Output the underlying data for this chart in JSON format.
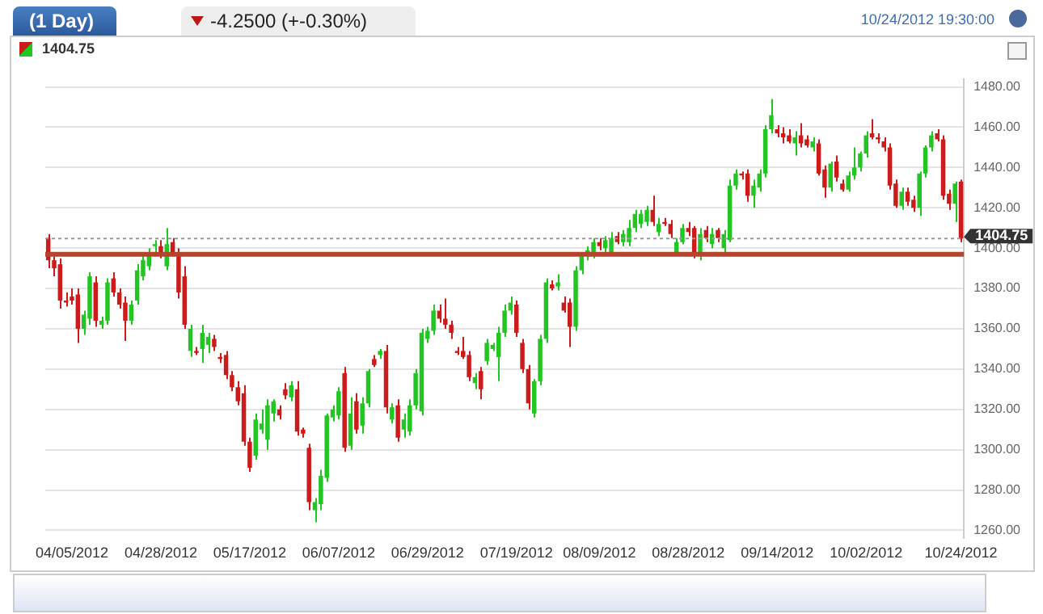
{
  "chart_data": {
    "type": "candlestick",
    "title": "(1 Day)",
    "subtitle": "-4.2500 (+-0.30%)",
    "annotations": [
      "1404.75",
      "10/24/2012 19:30:00"
    ],
    "categories": [
      null,
      null,
      null,
      null,
      "04/05/2012",
      null,
      null,
      null,
      null,
      null,
      null,
      null,
      null,
      null,
      null,
      null,
      null,
      null,
      null,
      "04/28/2012",
      null,
      null,
      null,
      null,
      null,
      null,
      null,
      null,
      null,
      null,
      null,
      null,
      null,
      null,
      "05/17/2012",
      null,
      null,
      null,
      null,
      null,
      null,
      null,
      null,
      null,
      null,
      null,
      null,
      null,
      null,
      "06/07/2012",
      null,
      null,
      null,
      null,
      null,
      null,
      null,
      null,
      null,
      null,
      null,
      null,
      null,
      null,
      "06/29/2012",
      null,
      null,
      null,
      null,
      null,
      null,
      null,
      null,
      null,
      null,
      null,
      null,
      null,
      null,
      "07/19/2012",
      null,
      null,
      null,
      null,
      null,
      null,
      null,
      null,
      null,
      null,
      null,
      null,
      null,
      "08/09/2012",
      null,
      null,
      null,
      null,
      null,
      null,
      null,
      null,
      null,
      null,
      null,
      null,
      null,
      null,
      "08/28/2012",
      null,
      null,
      null,
      null,
      null,
      null,
      null,
      null,
      null,
      null,
      null,
      null,
      null,
      null,
      "09/14/2012",
      null,
      null,
      null,
      null,
      null,
      null,
      null,
      null,
      null,
      null,
      null,
      null,
      null,
      null,
      "10/02/2012",
      null,
      null,
      null,
      null,
      null,
      null,
      null,
      null,
      null,
      null,
      null,
      null,
      null,
      null,
      null,
      "10/24/2012"
    ],
    "ohlc": [
      [
        1405,
        1407,
        1390,
        1394
      ],
      [
        1394,
        1396,
        1386,
        1390
      ],
      [
        1392,
        1395,
        1370,
        1374
      ],
      [
        1374,
        1378,
        1371,
        1373
      ],
      [
        1376,
        1380,
        1372,
        1374
      ],
      [
        1377,
        1380,
        1353,
        1360
      ],
      [
        1360,
        1369,
        1357,
        1367
      ],
      [
        1365,
        1388,
        1362,
        1386
      ],
      [
        1383,
        1386,
        1361,
        1364
      ],
      [
        1362,
        1366,
        1360,
        1364
      ],
      [
        1364,
        1385,
        1362,
        1383
      ],
      [
        1385,
        1388,
        1376,
        1378
      ],
      [
        1378,
        1380,
        1370,
        1372
      ],
      [
        1373,
        1376,
        1354,
        1364
      ],
      [
        1364,
        1374,
        1362,
        1372
      ],
      [
        1374,
        1392,
        1372,
        1389
      ],
      [
        1386,
        1396,
        1384,
        1394
      ],
      [
        1391,
        1400,
        1389,
        1398
      ],
      [
        1401,
        1404,
        1398,
        1402
      ],
      [
        1401,
        1404,
        1395,
        1397
      ],
      [
        1391,
        1410,
        1389,
        1402
      ],
      [
        1403,
        1405,
        1396,
        1398
      ],
      [
        1398,
        1400,
        1375,
        1378
      ],
      [
        1386,
        1391,
        1360,
        1362
      ],
      [
        1349,
        1362,
        1346,
        1360
      ],
      [
        1349,
        1351,
        1347,
        1348
      ],
      [
        1350,
        1362,
        1343,
        1358
      ],
      [
        1352,
        1358,
        1348,
        1356
      ],
      [
        1355,
        1357,
        1349,
        1351
      ],
      [
        1346,
        1348,
        1343,
        1345
      ],
      [
        1347,
        1349,
        1335,
        1337
      ],
      [
        1337,
        1339,
        1329,
        1331
      ],
      [
        1331,
        1334,
        1322,
        1324
      ],
      [
        1328,
        1332,
        1302,
        1304
      ],
      [
        1304,
        1306,
        1289,
        1291
      ],
      [
        1297,
        1318,
        1295,
        1315
      ],
      [
        1310,
        1320,
        1308,
        1313
      ],
      [
        1305,
        1325,
        1300,
        1322
      ],
      [
        1318,
        1325,
        1314,
        1324
      ],
      [
        1320,
        1322,
        1315,
        1317
      ],
      [
        1330,
        1333,
        1325,
        1327
      ],
      [
        1326,
        1334,
        1324,
        1332
      ],
      [
        1330,
        1334,
        1307,
        1309
      ],
      [
        1310,
        1311,
        1306,
        1308
      ],
      [
        1301,
        1303,
        1270,
        1274
      ],
      [
        1270,
        1276,
        1264,
        1274
      ],
      [
        1273,
        1290,
        1270,
        1287
      ],
      [
        1286,
        1318,
        1284,
        1317
      ],
      [
        1316,
        1322,
        1314,
        1320
      ],
      [
        1317,
        1331,
        1315,
        1329
      ],
      [
        1338,
        1341,
        1299,
        1301
      ],
      [
        1302,
        1326,
        1300,
        1318
      ],
      [
        1324,
        1328,
        1308,
        1310
      ],
      [
        1312,
        1326,
        1308,
        1323
      ],
      [
        1323,
        1340,
        1321,
        1339
      ],
      [
        1345,
        1347,
        1341,
        1342
      ],
      [
        1347,
        1350,
        1345,
        1349
      ],
      [
        1349,
        1352,
        1318,
        1321
      ],
      [
        1315,
        1323,
        1313,
        1321
      ],
      [
        1322,
        1325,
        1304,
        1306
      ],
      [
        1310,
        1318,
        1306,
        1315
      ],
      [
        1309,
        1325,
        1307,
        1322
      ],
      [
        1322,
        1340,
        1320,
        1338
      ],
      [
        1319,
        1360,
        1317,
        1358
      ],
      [
        1355,
        1361,
        1353,
        1359
      ],
      [
        1359,
        1372,
        1357,
        1369
      ],
      [
        1369,
        1372,
        1363,
        1365
      ],
      [
        1365,
        1375,
        1360,
        1362
      ],
      [
        1362,
        1364,
        1355,
        1358
      ],
      [
        1349,
        1351,
        1347,
        1348
      ],
      [
        1349,
        1356,
        1345,
        1346
      ],
      [
        1347,
        1349,
        1334,
        1336
      ],
      [
        1333,
        1338,
        1330,
        1336
      ],
      [
        1339,
        1341,
        1325,
        1330
      ],
      [
        1344,
        1355,
        1342,
        1353
      ],
      [
        1350,
        1353,
        1349,
        1352
      ],
      [
        1346,
        1361,
        1334,
        1358
      ],
      [
        1358,
        1372,
        1356,
        1369
      ],
      [
        1369,
        1376,
        1367,
        1373
      ],
      [
        1372,
        1374,
        1356,
        1358
      ],
      [
        1353,
        1355,
        1338,
        1340
      ],
      [
        1340,
        1342,
        1320,
        1323
      ],
      [
        1318,
        1335,
        1316,
        1334
      ],
      [
        1334,
        1357,
        1332,
        1355
      ],
      [
        1355,
        1385,
        1353,
        1383
      ],
      [
        1382,
        1384,
        1379,
        1380
      ],
      [
        1381,
        1387,
        1379,
        1383
      ],
      [
        1373,
        1376,
        1368,
        1369
      ],
      [
        1373,
        1375,
        1351,
        1361
      ],
      [
        1361,
        1391,
        1359,
        1389
      ],
      [
        1389,
        1397,
        1387,
        1396
      ],
      [
        1396,
        1401,
        1394,
        1399
      ],
      [
        1397,
        1405,
        1395,
        1403
      ],
      [
        1403,
        1405,
        1399,
        1401
      ],
      [
        1400,
        1406,
        1398,
        1404
      ],
      [
        1398,
        1408,
        1396,
        1405
      ],
      [
        1406,
        1408,
        1402,
        1403
      ],
      [
        1403,
        1409,
        1401,
        1407
      ],
      [
        1403,
        1414,
        1401,
        1410
      ],
      [
        1410,
        1419,
        1408,
        1417
      ],
      [
        1412,
        1419,
        1410,
        1417
      ],
      [
        1413,
        1421,
        1411,
        1419
      ],
      [
        1419,
        1426,
        1411,
        1413
      ],
      [
        1408,
        1415,
        1406,
        1412
      ],
      [
        1413,
        1415,
        1411,
        1412
      ],
      [
        1412,
        1414,
        1405,
        1407
      ],
      [
        1397,
        1405,
        1396,
        1403
      ],
      [
        1403,
        1412,
        1402,
        1410
      ],
      [
        1410,
        1413,
        1406,
        1408
      ],
      [
        1410,
        1411,
        1395,
        1398
      ],
      [
        1396,
        1410,
        1394,
        1407
      ],
      [
        1409,
        1411,
        1403,
        1405
      ],
      [
        1402,
        1410,
        1400,
        1407
      ],
      [
        1409,
        1410,
        1403,
        1405
      ],
      [
        1400,
        1409,
        1398,
        1407
      ],
      [
        1404,
        1434,
        1403,
        1431
      ],
      [
        1431,
        1439,
        1429,
        1437
      ],
      [
        1437,
        1438,
        1434,
        1436
      ],
      [
        1437,
        1439,
        1423,
        1426
      ],
      [
        1426,
        1434,
        1420,
        1431
      ],
      [
        1430,
        1439,
        1428,
        1437
      ],
      [
        1437,
        1461,
        1435,
        1459
      ],
      [
        1459,
        1474,
        1457,
        1466
      ],
      [
        1459,
        1461,
        1455,
        1457
      ],
      [
        1457,
        1460,
        1452,
        1455
      ],
      [
        1456,
        1459,
        1452,
        1453
      ],
      [
        1452,
        1458,
        1446,
        1455
      ],
      [
        1456,
        1462,
        1450,
        1452
      ],
      [
        1454,
        1456,
        1450,
        1451
      ],
      [
        1450,
        1455,
        1448,
        1453
      ],
      [
        1452,
        1454,
        1436,
        1437
      ],
      [
        1439,
        1441,
        1425,
        1430
      ],
      [
        1430,
        1443,
        1428,
        1442
      ],
      [
        1443,
        1446,
        1433,
        1435
      ],
      [
        1432,
        1434,
        1428,
        1429
      ],
      [
        1429,
        1438,
        1428,
        1436
      ],
      [
        1436,
        1450,
        1434,
        1440
      ],
      [
        1440,
        1448,
        1438,
        1447
      ],
      [
        1447,
        1458,
        1445,
        1456
      ],
      [
        1457,
        1464,
        1454,
        1455
      ],
      [
        1455,
        1457,
        1452,
        1454
      ],
      [
        1453,
        1455,
        1448,
        1450
      ],
      [
        1450,
        1452,
        1429,
        1431
      ],
      [
        1432,
        1434,
        1420,
        1421
      ],
      [
        1421,
        1430,
        1419,
        1428
      ],
      [
        1428,
        1430,
        1421,
        1423
      ],
      [
        1424,
        1426,
        1418,
        1420
      ],
      [
        1420,
        1438,
        1416,
        1437
      ],
      [
        1437,
        1451,
        1435,
        1450
      ],
      [
        1450,
        1458,
        1448,
        1456
      ],
      [
        1457,
        1459,
        1453,
        1454
      ],
      [
        1454,
        1456,
        1424,
        1426
      ],
      [
        1427,
        1429,
        1419,
        1422
      ],
      [
        1422,
        1433,
        1413,
        1432
      ],
      [
        1433,
        1434,
        1403,
        1404.75
      ]
    ],
    "colors": [
      "#cc1b1b",
      "#cc1b1b",
      "#cc1b1b",
      "#cc1b1b",
      "#cc1b1b",
      "#cc1b1b",
      "#22c522",
      "#22c522",
      "#cc1b1b",
      "#22c522",
      "#22c522",
      "#cc1b1b",
      "#cc1b1b",
      "#cc1b1b",
      "#22c522",
      "#22c522",
      "#22c522",
      "#22c522",
      "#22c522",
      "#cc1b1b",
      "#22c522",
      "#cc1b1b",
      "#cc1b1b",
      "#cc1b1b",
      "#22c522",
      "#cc1b1b",
      "#22c522",
      "#22c522",
      "#cc1b1b",
      "#cc1b1b",
      "#cc1b1b",
      "#cc1b1b",
      "#cc1b1b",
      "#cc1b1b",
      "#cc1b1b",
      "#22c522",
      "#22c522",
      "#22c522",
      "#22c522",
      "#cc1b1b",
      "#cc1b1b",
      "#22c522",
      "#cc1b1b",
      "#cc1b1b",
      "#cc1b1b",
      "#22c522",
      "#22c522",
      "#22c522",
      "#22c522",
      "#22c522",
      "#cc1b1b",
      "#22c522",
      "#cc1b1b",
      "#22c522",
      "#22c522",
      "#cc1b1b",
      "#22c522",
      "#cc1b1b",
      "#22c522",
      "#cc1b1b",
      "#22c522",
      "#22c522",
      "#22c522",
      "#22c522",
      "#22c522",
      "#22c522",
      "#cc1b1b",
      "#cc1b1b",
      "#cc1b1b",
      "#cc1b1b",
      "#cc1b1b",
      "#cc1b1b",
      "#22c522",
      "#cc1b1b",
      "#22c522",
      "#22c522",
      "#22c522",
      "#22c522",
      "#22c522",
      "#cc1b1b",
      "#cc1b1b",
      "#cc1b1b",
      "#22c522",
      "#22c522",
      "#22c522",
      "#cc1b1b",
      "#22c522",
      "#cc1b1b",
      "#cc1b1b",
      "#22c522",
      "#22c522",
      "#22c522",
      "#22c522",
      "#cc1b1b",
      "#22c522",
      "#22c522",
      "#cc1b1b",
      "#22c522",
      "#22c522",
      "#22c522",
      "#22c522",
      "#22c522",
      "#cc1b1b",
      "#22c522",
      "#cc1b1b",
      "#cc1b1b",
      "#22c522",
      "#22c522",
      "#cc1b1b",
      "#cc1b1b",
      "#22c522",
      "#cc1b1b",
      "#22c522",
      "#cc1b1b",
      "#22c522",
      "#22c522",
      "#22c522",
      "#cc1b1b",
      "#cc1b1b",
      "#22c522",
      "#22c522",
      "#22c522",
      "#22c522",
      "#cc1b1b",
      "#cc1b1b",
      "#cc1b1b",
      "#22c522",
      "#cc1b1b",
      "#cc1b1b",
      "#22c522",
      "#cc1b1b",
      "#cc1b1b",
      "#22c522",
      "#cc1b1b",
      "#cc1b1b",
      "#22c522",
      "#22c522",
      "#22c522",
      "#22c522",
      "#cc1b1b",
      "#cc1b1b",
      "#cc1b1b",
      "#cc1b1b",
      "#cc1b1b",
      "#22c522",
      "#cc1b1b",
      "#cc1b1b",
      "#22c522",
      "#22c522",
      "#22c522",
      "#cc1b1b",
      "#cc1b1b",
      "#cc1b1b",
      "#22c522",
      "#cc1b1b"
    ],
    "ylim": [
      1256,
      1484
    ],
    "yticks": [
      {
        "value": 1260,
        "label": "1260.00"
      },
      {
        "value": 1280,
        "label": "1280.00"
      },
      {
        "value": 1300,
        "label": "1300.00"
      },
      {
        "value": 1320,
        "label": "1320.00"
      },
      {
        "value": 1340,
        "label": "1340.00"
      },
      {
        "value": 1360,
        "label": "1360.00"
      },
      {
        "value": 1380,
        "label": "1380.00"
      },
      {
        "value": 1400,
        "label": "1400.00"
      },
      {
        "value": 1420,
        "label": "1420.00"
      },
      {
        "value": 1440,
        "label": "1440.00"
      },
      {
        "value": 1460,
        "label": "1460.00"
      },
      {
        "value": 1480,
        "label": "1480.00"
      }
    ],
    "grid": "y",
    "legend": false,
    "ref_lines": [
      {
        "axis": "y",
        "value": 1397,
        "color": "#b5442c",
        "line_style": "solid"
      },
      {
        "axis": "y",
        "value": 1404.75,
        "label": "1404.75",
        "color": "#9a9a9a",
        "line_style": "dotted"
      }
    ]
  }
}
